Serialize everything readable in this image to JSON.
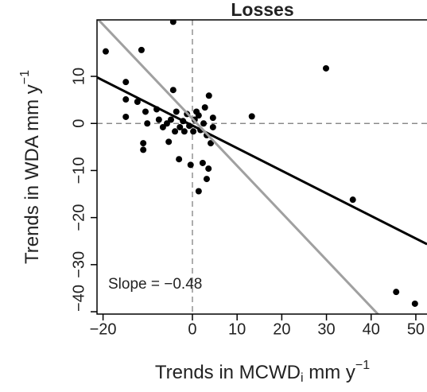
{
  "chart_data": {
    "type": "scatter",
    "title": "Losses",
    "title_color": "#a0a0a0",
    "x_label": [
      "Trends in MCWD",
      "i",
      " mm y",
      "−1"
    ],
    "y_label": [
      "Trends in WDA mm y",
      "−1"
    ],
    "annotation": "Slope = −0.48",
    "xlim": [
      -21.35,
      52.5
    ],
    "ylim": [
      -40.5,
      22
    ],
    "xticks": [
      {
        "value": -20,
        "label": "−20"
      },
      0,
      10,
      20,
      30,
      40,
      50
    ],
    "yticks": [
      10,
      0,
      {
        "value": -10,
        "label": "−10"
      },
      {
        "value": -20,
        "label": "−20"
      },
      {
        "value": -30,
        "label": "−30"
      },
      {
        "value": -40,
        "label": "−40"
      }
    ],
    "hline": 0,
    "vline": 0,
    "color": "#000000",
    "lines": [
      {
        "color": "#000000",
        "slope": -0.48,
        "intercept": -0.45
      },
      {
        "color": "#a0a0a0",
        "slope": -1.0,
        "intercept": 1.0
      }
    ],
    "x": [
      -19.4,
      -11.4,
      -4.3,
      29.9,
      13.3,
      35.9,
      45.6,
      49.8,
      -14.9,
      -14.9,
      -14.9,
      -12.3,
      -11,
      -11,
      -10.5,
      -10.1,
      -8.0,
      -7.5,
      -6.6,
      -5.3,
      -4.3,
      -3.6,
      -3.0,
      -1.8,
      -0.4,
      1.4,
      2.3,
      3.2,
      3.6,
      3.7,
      4.1,
      4.6,
      4.6,
      1.4,
      0.5,
      -0.7,
      -2.1,
      -2.8,
      1.8,
      2.5,
      0.9,
      -1.2,
      -4.8,
      -3.9,
      2.8,
      0.2,
      3.2,
      -5.7
    ],
    "y": [
      15.3,
      15.6,
      21.6,
      11.7,
      1.5,
      -16.2,
      -35.8,
      -38.3,
      8.8,
      5.1,
      1.4,
      4.6,
      -5.6,
      -4.2,
      2.5,
      0,
      3,
      0.8,
      -0.8,
      -3.9,
      7.1,
      2.5,
      -7.6,
      -1.7,
      -8.8,
      -14.4,
      -8.4,
      -11.8,
      -9.6,
      5.9,
      -4.2,
      -0.8,
      1.2,
      1.7,
      0.8,
      -0.5,
      0.5,
      -0.8,
      -1.4,
      0,
      2.5,
      2,
      0.8,
      -1.7,
      3.4,
      -1.7,
      -2.5,
      0
    ]
  }
}
